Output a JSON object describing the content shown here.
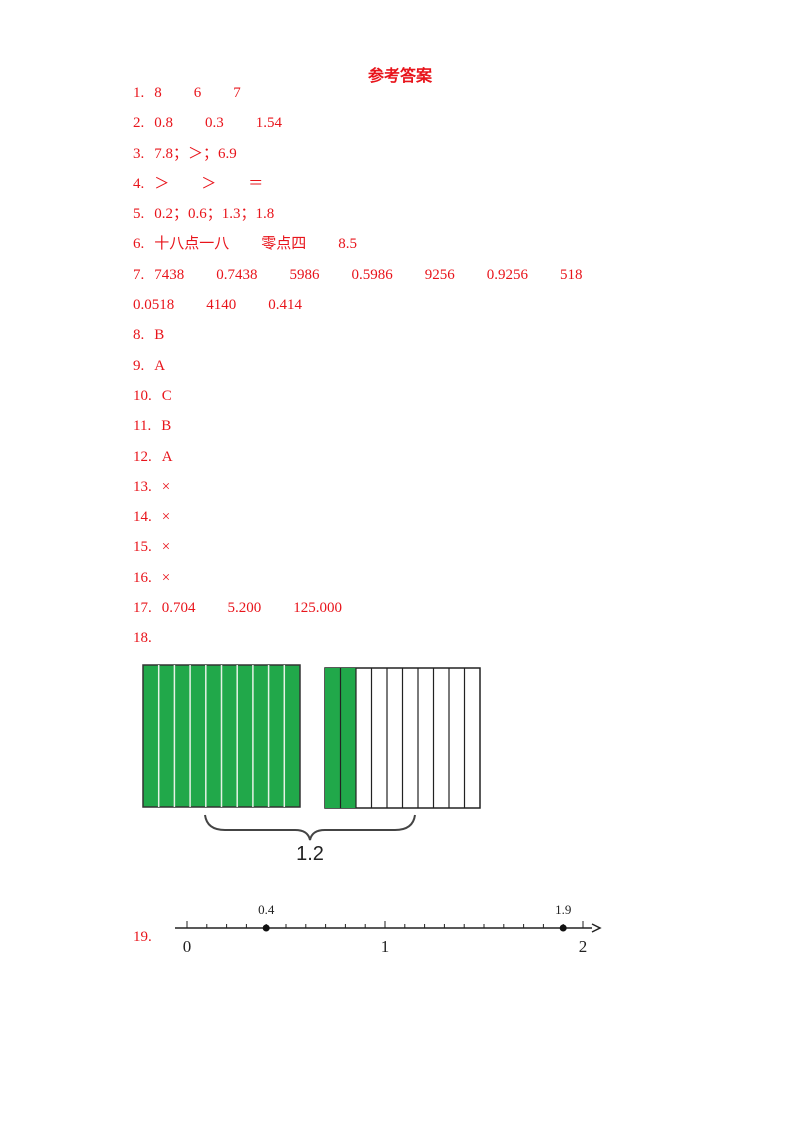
{
  "title": "参考答案",
  "answers": [
    {
      "number": "1.",
      "lines": [
        [
          "8",
          "6",
          "7"
        ]
      ]
    },
    {
      "number": "2.",
      "lines": [
        [
          "0.8",
          "0.3",
          "1.54"
        ]
      ]
    },
    {
      "number": "3.",
      "lines": [
        [
          "7.8；＞；6.9"
        ]
      ]
    },
    {
      "number": "4.",
      "lines": [
        [
          "＞",
          "＞",
          "＝"
        ]
      ]
    },
    {
      "number": "5.",
      "lines": [
        [
          "0.2；0.6；1.3；1.8"
        ]
      ]
    },
    {
      "number": "6.",
      "lines": [
        [
          "十八点一八",
          "零点四",
          "8.5"
        ]
      ]
    },
    {
      "number": "7.",
      "lines": [
        [
          "7438",
          "0.7438",
          "5986",
          "0.5986",
          "9256",
          "0.9256",
          "518"
        ],
        [
          "0.0518",
          "4140",
          "0.414"
        ]
      ]
    },
    {
      "number": "8.",
      "lines": [
        [
          "B"
        ]
      ]
    },
    {
      "number": "9.",
      "lines": [
        [
          "A"
        ]
      ]
    },
    {
      "number": "10.",
      "lines": [
        [
          "C"
        ]
      ]
    },
    {
      "number": "11.",
      "lines": [
        [
          "B"
        ]
      ]
    },
    {
      "number": "12.",
      "lines": [
        [
          "A"
        ]
      ]
    },
    {
      "number": "13.",
      "lines": [
        [
          "×"
        ]
      ]
    },
    {
      "number": "14.",
      "lines": [
        [
          "×"
        ]
      ]
    },
    {
      "number": "15.",
      "lines": [
        [
          "×"
        ]
      ]
    },
    {
      "number": "16.",
      "lines": [
        [
          "×"
        ]
      ]
    },
    {
      "number": "17.",
      "lines": [
        [
          "0.704",
          "5.200",
          "125.000"
        ]
      ]
    },
    {
      "number": "18.",
      "lines": []
    }
  ],
  "figure18": {
    "label": "1.2"
  },
  "question19": {
    "number": "19.",
    "axis_labels": [
      0,
      1,
      2
    ],
    "points": [
      0.4,
      1.9
    ]
  }
}
